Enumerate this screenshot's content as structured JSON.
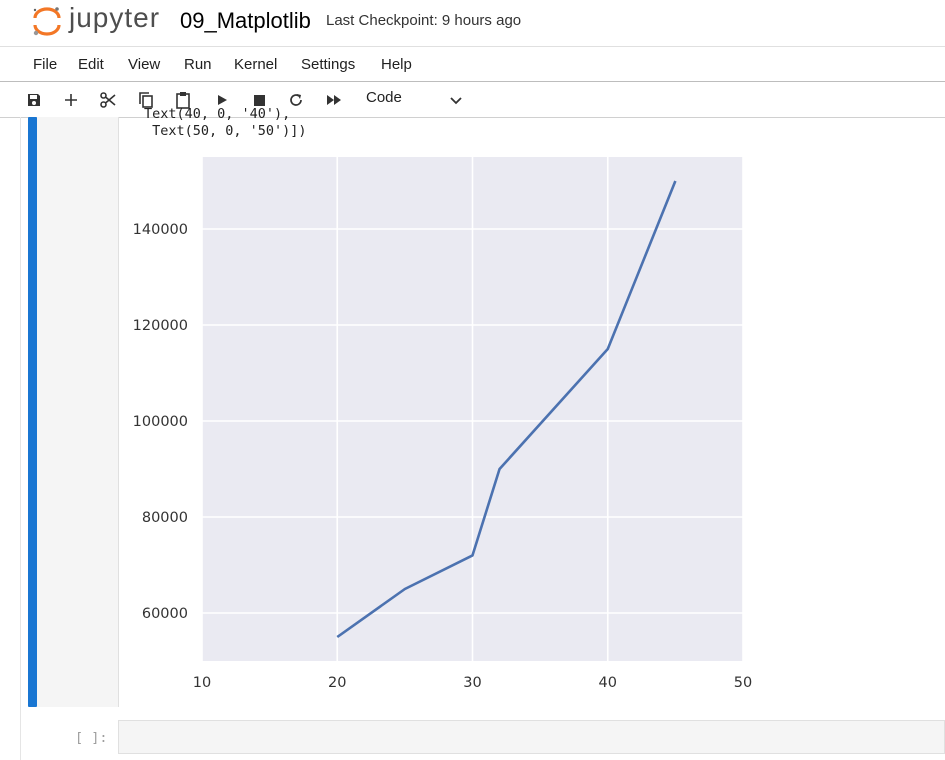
{
  "header": {
    "logo_text": "jupyter",
    "notebook_title": "09_Matplotlib",
    "checkpoint": "Last Checkpoint: 9 hours ago"
  },
  "menu": [
    "File",
    "Edit",
    "View",
    "Run",
    "Kernel",
    "Settings",
    "Help"
  ],
  "toolbar": {
    "icons": [
      "save-icon",
      "add-icon",
      "cut-icon",
      "copy-icon",
      "paste-icon",
      "run-icon",
      "stop-icon",
      "restart-icon",
      "fast-forward-icon"
    ],
    "cell_type": "Code"
  },
  "cell": {
    "output_line_partial": "Text(40, 0, '40'),",
    "output_line": " Text(50, 0, '50')])"
  },
  "next_cell": {
    "prompt": "[ ]:"
  },
  "colors": {
    "accent": "#1976d2",
    "line": "#4c72b0",
    "plot_bg": "#eaeaf2"
  },
  "chart_data": {
    "type": "line",
    "x": [
      20,
      25,
      30,
      32,
      40,
      45
    ],
    "series": [
      {
        "values": [
          55000,
          65000,
          72000,
          90000,
          115000,
          150000
        ]
      }
    ],
    "xlim": [
      10,
      50
    ],
    "ylim": [
      50000,
      155000
    ],
    "xticks": [
      10,
      20,
      30,
      40,
      50
    ],
    "yticks": [
      60000,
      80000,
      100000,
      120000,
      140000
    ],
    "xtick_labels": [
      "10",
      "20",
      "30",
      "40",
      "50"
    ],
    "ytick_labels": [
      "60000",
      "80000",
      "100000",
      "120000",
      "140000"
    ],
    "title": "",
    "xlabel": "",
    "ylabel": "",
    "grid": true
  }
}
